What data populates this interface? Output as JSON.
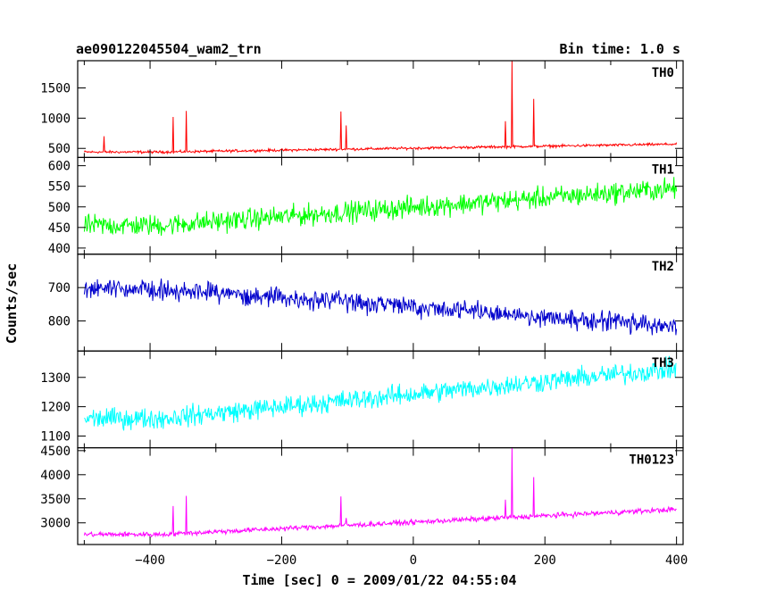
{
  "header": {
    "left_title": "ae090122045504_wam2_trn",
    "right_title": "Bin time: 1.0 s"
  },
  "axes": {
    "xlabel": "Time [sec] 0 = 2009/01/22 04:55:04",
    "ylabel": "Counts/sec"
  },
  "chart_data": {
    "type": "line",
    "xlim": [
      -510,
      410
    ],
    "xticks": [
      -400,
      -200,
      0,
      200,
      400
    ],
    "x_range": [
      -500,
      400
    ],
    "bin_time_sec": 1.0,
    "panels": [
      {
        "name": "TH0",
        "color": "#ff0000",
        "ylim": [
          350,
          1950
        ],
        "yticks": [
          500,
          1000,
          1500
        ],
        "ytick_labels": [
          "500",
          "1000",
          "1500"
        ],
        "baseline_start": 440,
        "baseline_end": 570,
        "noise": 18,
        "spikes": [
          {
            "x": -470,
            "y": 700
          },
          {
            "x": -365,
            "y": 1020
          },
          {
            "x": -345,
            "y": 1120
          },
          {
            "x": -110,
            "y": 1110
          },
          {
            "x": -102,
            "y": 880
          },
          {
            "x": 140,
            "y": 950
          },
          {
            "x": 150,
            "y": 1950
          },
          {
            "x": 183,
            "y": 1320
          }
        ]
      },
      {
        "name": "TH1",
        "color": "#00ff00",
        "ylim": [
          385,
          620
        ],
        "yticks": [
          400,
          450,
          500,
          550,
          600
        ],
        "ytick_labels": [
          "400",
          "450",
          "500",
          "550",
          "600"
        ],
        "baseline_start": 455,
        "baseline_end": 545,
        "noise": 22,
        "spikes": []
      },
      {
        "name": "TH2",
        "color": "#0000cc",
        "ylim": [
          600,
          890
        ],
        "invert": true,
        "yticks": [
          700,
          800
        ],
        "ytick_labels": [
          "700",
          "800"
        ],
        "baseline_start": 705,
        "baseline_end": 815,
        "noise": 25,
        "spikes": []
      },
      {
        "name": "TH3",
        "color": "#00ffff",
        "ylim": [
          1060,
          1390
        ],
        "yticks": [
          1100,
          1200,
          1300
        ],
        "ytick_labels": [
          "1100",
          "1200",
          "1300"
        ],
        "baseline_start": 1160,
        "baseline_end": 1330,
        "noise": 30,
        "spikes": []
      },
      {
        "name": "TH0123",
        "color": "#ff00ff",
        "ylim": [
          2550,
          4560
        ],
        "yticks": [
          3000,
          3500,
          4000,
          4500
        ],
        "ytick_labels": [
          "3000",
          "3500",
          "4000",
          "4500"
        ],
        "baseline_start": 2760,
        "baseline_end": 3280,
        "noise": 45,
        "spikes": [
          {
            "x": -365,
            "y": 3350
          },
          {
            "x": -345,
            "y": 3560
          },
          {
            "x": -110,
            "y": 3550
          },
          {
            "x": -102,
            "y": 3100
          },
          {
            "x": 140,
            "y": 3480
          },
          {
            "x": 150,
            "y": 4560
          },
          {
            "x": 183,
            "y": 3950
          }
        ]
      }
    ]
  }
}
